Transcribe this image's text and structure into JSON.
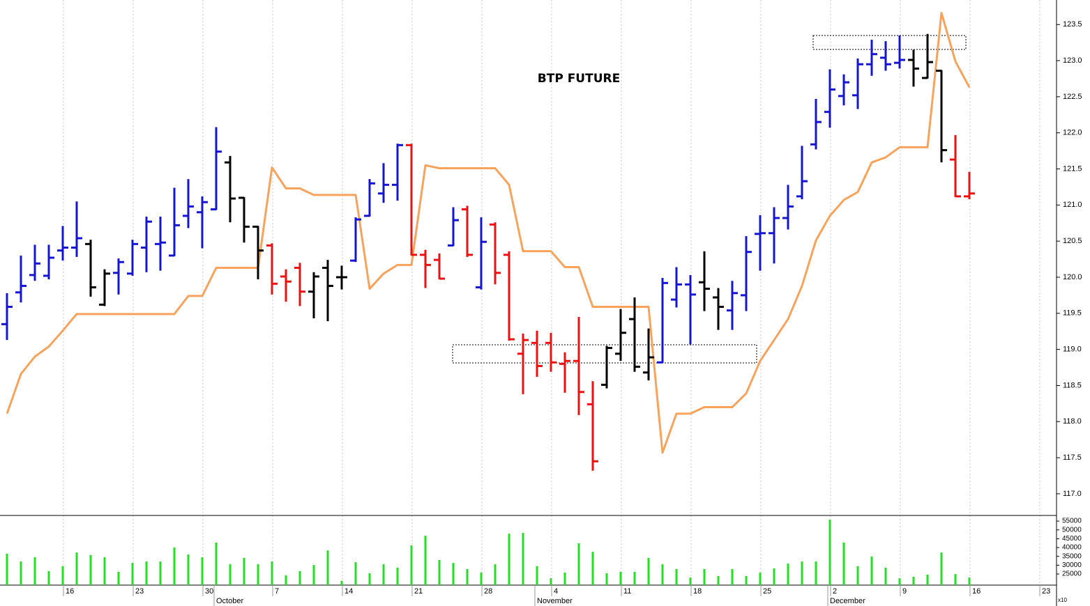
{
  "chart_data": {
    "type": "ohlc",
    "title": "BTP FUTURE",
    "categories": [
      null,
      null,
      null,
      null,
      "16",
      null,
      null,
      null,
      null,
      "23",
      null,
      null,
      null,
      null,
      "30",
      null,
      null,
      null,
      null,
      "7",
      null,
      null,
      null,
      null,
      "14",
      null,
      null,
      null,
      null,
      "21",
      null,
      null,
      null,
      null,
      "28",
      null,
      null,
      null,
      null,
      "4",
      null,
      null,
      null,
      null,
      "11",
      null,
      null,
      null,
      null,
      "18",
      null,
      null,
      null,
      null,
      "25",
      null,
      null,
      null,
      null,
      "2",
      null,
      null,
      null,
      null,
      "9",
      null,
      null,
      null,
      null,
      "16",
      null,
      null,
      null,
      null,
      "23",
      null
    ],
    "months": [
      null,
      null,
      null,
      null,
      null,
      null,
      null,
      null,
      null,
      null,
      null,
      null,
      null,
      null,
      null,
      "October",
      null,
      null,
      null,
      null,
      null,
      null,
      null,
      null,
      null,
      null,
      null,
      null,
      null,
      null,
      null,
      null,
      null,
      null,
      null,
      null,
      null,
      null,
      "November",
      null,
      null,
      null,
      null,
      null,
      null,
      null,
      null,
      null,
      null,
      null,
      null,
      null,
      null,
      null,
      null,
      null,
      null,
      null,
      null,
      "December",
      null,
      null,
      null,
      null,
      null,
      null,
      null,
      null,
      null,
      null,
      null,
      null,
      null,
      null,
      null,
      null
    ],
    "ylim": [
      116.7,
      123.84
    ],
    "yticks": [
      {
        "value": 117,
        "label": "117.0"
      },
      117.5,
      {
        "value": 118,
        "label": "118.0"
      },
      118.5,
      {
        "value": 119,
        "label": "119.0"
      },
      119.5,
      {
        "value": 120,
        "label": "120.0"
      },
      120.5,
      {
        "value": 121,
        "label": "121.0"
      },
      121.5,
      {
        "value": 122,
        "label": "122.0"
      },
      122.5,
      {
        "value": 123,
        "label": "123.0"
      },
      123.5
    ],
    "grid": true,
    "bars": {
      "open": [
        119.35,
        119.79,
        120.03,
        120.02,
        120.37,
        120.41,
        120.46,
        119.62,
        120.06,
        120.05,
        120.41,
        120.46,
        120.3,
        120.85,
        120.9,
        120.94,
        121.59,
        121.1,
        120.7,
        120.44,
        120.01,
        120.13,
        119.8,
        120.13,
        120.0,
        120.23,
        120.85,
        121.16,
        121.28,
        121.83,
        120.31,
        120.24,
        120.44,
        120.94,
        119.86,
        120.73,
        120.31,
        118.94,
        119.09,
        119.09,
        118.8,
        118.84,
        118.24,
        118.51,
        118.94,
        119.42,
        118.68,
        118.82,
        119.69,
        119.9,
        119.93,
        119.72,
        119.54,
        119.75,
        120.6,
        120.61,
        120.82,
        121.12,
        121.84,
        122.29,
        122.51,
        122.52,
        122.95,
        123.04,
        122.97,
        123.01,
        122.76,
        122.86,
        121.63,
        121.12,
        null,
        null,
        null,
        null,
        null,
        null
      ],
      "high": [
        119.77,
        120.29,
        120.44,
        120.44,
        120.7,
        121.04,
        120.51,
        120.1,
        120.25,
        120.51,
        120.83,
        120.83,
        121.23,
        121.35,
        121.11,
        122.07,
        121.67,
        121.1,
        120.7,
        120.46,
        120.1,
        120.19,
        120.06,
        120.23,
        120.15,
        120.82,
        121.35,
        121.57,
        121.84,
        121.84,
        120.37,
        120.32,
        120.96,
        120.98,
        120.82,
        120.75,
        120.35,
        119.21,
        119.25,
        119.22,
        118.95,
        119.44,
        118.55,
        119.04,
        119.55,
        119.71,
        119.28,
        119.98,
        120.13,
        120.02,
        120.35,
        119.84,
        119.94,
        120.56,
        120.85,
        120.96,
        121.27,
        121.81,
        122.46,
        122.87,
        122.8,
        123.02,
        123.28,
        123.26,
        123.34,
        123.14,
        123.36,
        122.86,
        121.96,
        121.45,
        null,
        null,
        null,
        null,
        null,
        null
      ],
      "low": [
        119.14,
        119.66,
        119.96,
        119.98,
        120.24,
        120.29,
        119.74,
        119.61,
        119.77,
        120.03,
        120.08,
        120.1,
        120.3,
        120.69,
        120.41,
        120.94,
        120.77,
        120.49,
        119.98,
        119.77,
        119.67,
        119.61,
        119.44,
        119.4,
        119.84,
        120.22,
        120.85,
        121.04,
        121.07,
        120.31,
        119.86,
        119.98,
        120.44,
        120.29,
        119.84,
        119.91,
        119.13,
        118.39,
        118.63,
        118.7,
        118.41,
        118.1,
        117.33,
        118.47,
        118.85,
        118.7,
        118.58,
        118.82,
        119.59,
        119.08,
        119.54,
        119.28,
        119.28,
        119.54,
        120.1,
        120.2,
        120.67,
        121.09,
        121.78,
        122.08,
        122.39,
        122.34,
        122.8,
        122.87,
        122.9,
        122.65,
        122.76,
        121.6,
        121.12,
        121.09,
        null,
        null,
        null,
        null,
        null,
        null
      ],
      "close": [
        119.59,
        119.88,
        120.19,
        120.27,
        120.41,
        120.54,
        119.86,
        120.05,
        120.21,
        120.46,
        120.77,
        120.48,
        120.72,
        120.98,
        121.04,
        121.74,
        121.09,
        120.7,
        120.37,
        119.91,
        119.94,
        119.8,
        120.01,
        119.88,
        120.0,
        120.8,
        121.3,
        121.28,
        121.83,
        120.31,
        120.17,
        119.98,
        120.79,
        120.31,
        120.49,
        120.06,
        119.14,
        119.13,
        118.77,
        118.82,
        118.84,
        118.41,
        117.45,
        119.02,
        119.23,
        118.76,
        118.89,
        119.92,
        119.9,
        119.76,
        119.84,
        119.59,
        119.78,
        120.35,
        120.61,
        120.82,
        120.98,
        121.33,
        122.15,
        122.6,
        122.7,
        122.95,
        123.09,
        122.95,
        123.01,
        122.89,
        122.98,
        121.76,
        121.12,
        121.16,
        null,
        null,
        null,
        null,
        null,
        null
      ],
      "colors": [
        "#1414d2",
        "#1414d2",
        "#1414d2",
        "#1414d2",
        "#1414d2",
        "#1414d2",
        "#000000",
        "#000000",
        "#1414d2",
        "#1414d2",
        "#1414d2",
        "#1414d2",
        "#1414d2",
        "#1414d2",
        "#1414d2",
        "#1414d2",
        "#000000",
        "#000000",
        "#000000",
        "#ee1111",
        "#ee1111",
        "#ee1111",
        "#000000",
        "#000000",
        "#000000",
        "#1414d2",
        "#1414d2",
        "#1414d2",
        "#1414d2",
        "#ee1111",
        "#ee1111",
        "#ee1111",
        "#1414d2",
        "#ee1111",
        "#1414d2",
        "#ee1111",
        "#ee1111",
        "#ee1111",
        "#ee1111",
        "#ee1111",
        "#ee1111",
        "#ee1111",
        "#ee1111",
        "#000000",
        "#000000",
        "#000000",
        "#000000",
        "#1414d2",
        "#1414d2",
        "#1414d2",
        "#000000",
        "#000000",
        "#1414d2",
        "#1414d2",
        "#1414d2",
        "#1414d2",
        "#1414d2",
        "#1414d2",
        "#1414d2",
        "#1414d2",
        "#1414d2",
        "#1414d2",
        "#1414d2",
        "#1414d2",
        "#1414d2",
        "#000000",
        "#000000",
        "#000000",
        "#ee1111",
        "#ee1111",
        null,
        null,
        null,
        null,
        null,
        null
      ]
    },
    "line": {
      "color": "#f7a35c",
      "values": [
        118.11,
        118.66,
        118.9,
        119.04,
        119.26,
        119.49,
        119.49,
        119.49,
        119.49,
        119.49,
        119.49,
        119.49,
        119.49,
        119.74,
        119.74,
        120.13,
        120.13,
        120.13,
        120.13,
        121.52,
        121.23,
        121.23,
        121.14,
        121.14,
        121.14,
        121.14,
        119.84,
        120.05,
        120.17,
        120.17,
        121.55,
        121.51,
        121.51,
        121.51,
        121.51,
        121.51,
        121.28,
        120.36,
        120.36,
        120.36,
        120.14,
        120.14,
        119.59,
        119.59,
        119.59,
        119.59,
        119.59,
        117.57,
        118.11,
        118.11,
        118.2,
        118.2,
        118.2,
        118.39,
        118.84,
        119.13,
        119.42,
        119.88,
        120.51,
        120.85,
        121.07,
        121.18,
        121.59,
        121.66,
        121.8,
        121.8,
        121.8,
        123.66,
        122.99,
        122.63,
        null,
        null,
        null,
        null,
        null,
        null
      ]
    },
    "volume": {
      "type": "bar",
      "color": "#22e022",
      "values": [
        36500,
        32100,
        34500,
        26600,
        29400,
        37200,
        35700,
        34500,
        26200,
        31300,
        32100,
        32100,
        40000,
        36100,
        34500,
        42800,
        30500,
        34100,
        30500,
        32100,
        24200,
        26600,
        30100,
        38400,
        21100,
        31700,
        25400,
        30500,
        28600,
        41200,
        46700,
        32900,
        31300,
        27800,
        25800,
        30500,
        47900,
        48300,
        29400,
        22600,
        25800,
        42400,
        37600,
        25400,
        26200,
        26200,
        34100,
        30500,
        27800,
        23000,
        27800,
        23800,
        27800,
        23800,
        25800,
        28200,
        30900,
        32100,
        32100,
        55800,
        42800,
        29400,
        34900,
        28600,
        22600,
        23400,
        24600,
        37200,
        25000,
        23000,
        null,
        null,
        null,
        null,
        null,
        null
      ],
      "ylim": [
        18700,
        58200
      ],
      "yticks": [
        25000,
        30000,
        35000,
        40000,
        45000,
        50000,
        55000
      ],
      "unit_label": "x10"
    }
  }
}
